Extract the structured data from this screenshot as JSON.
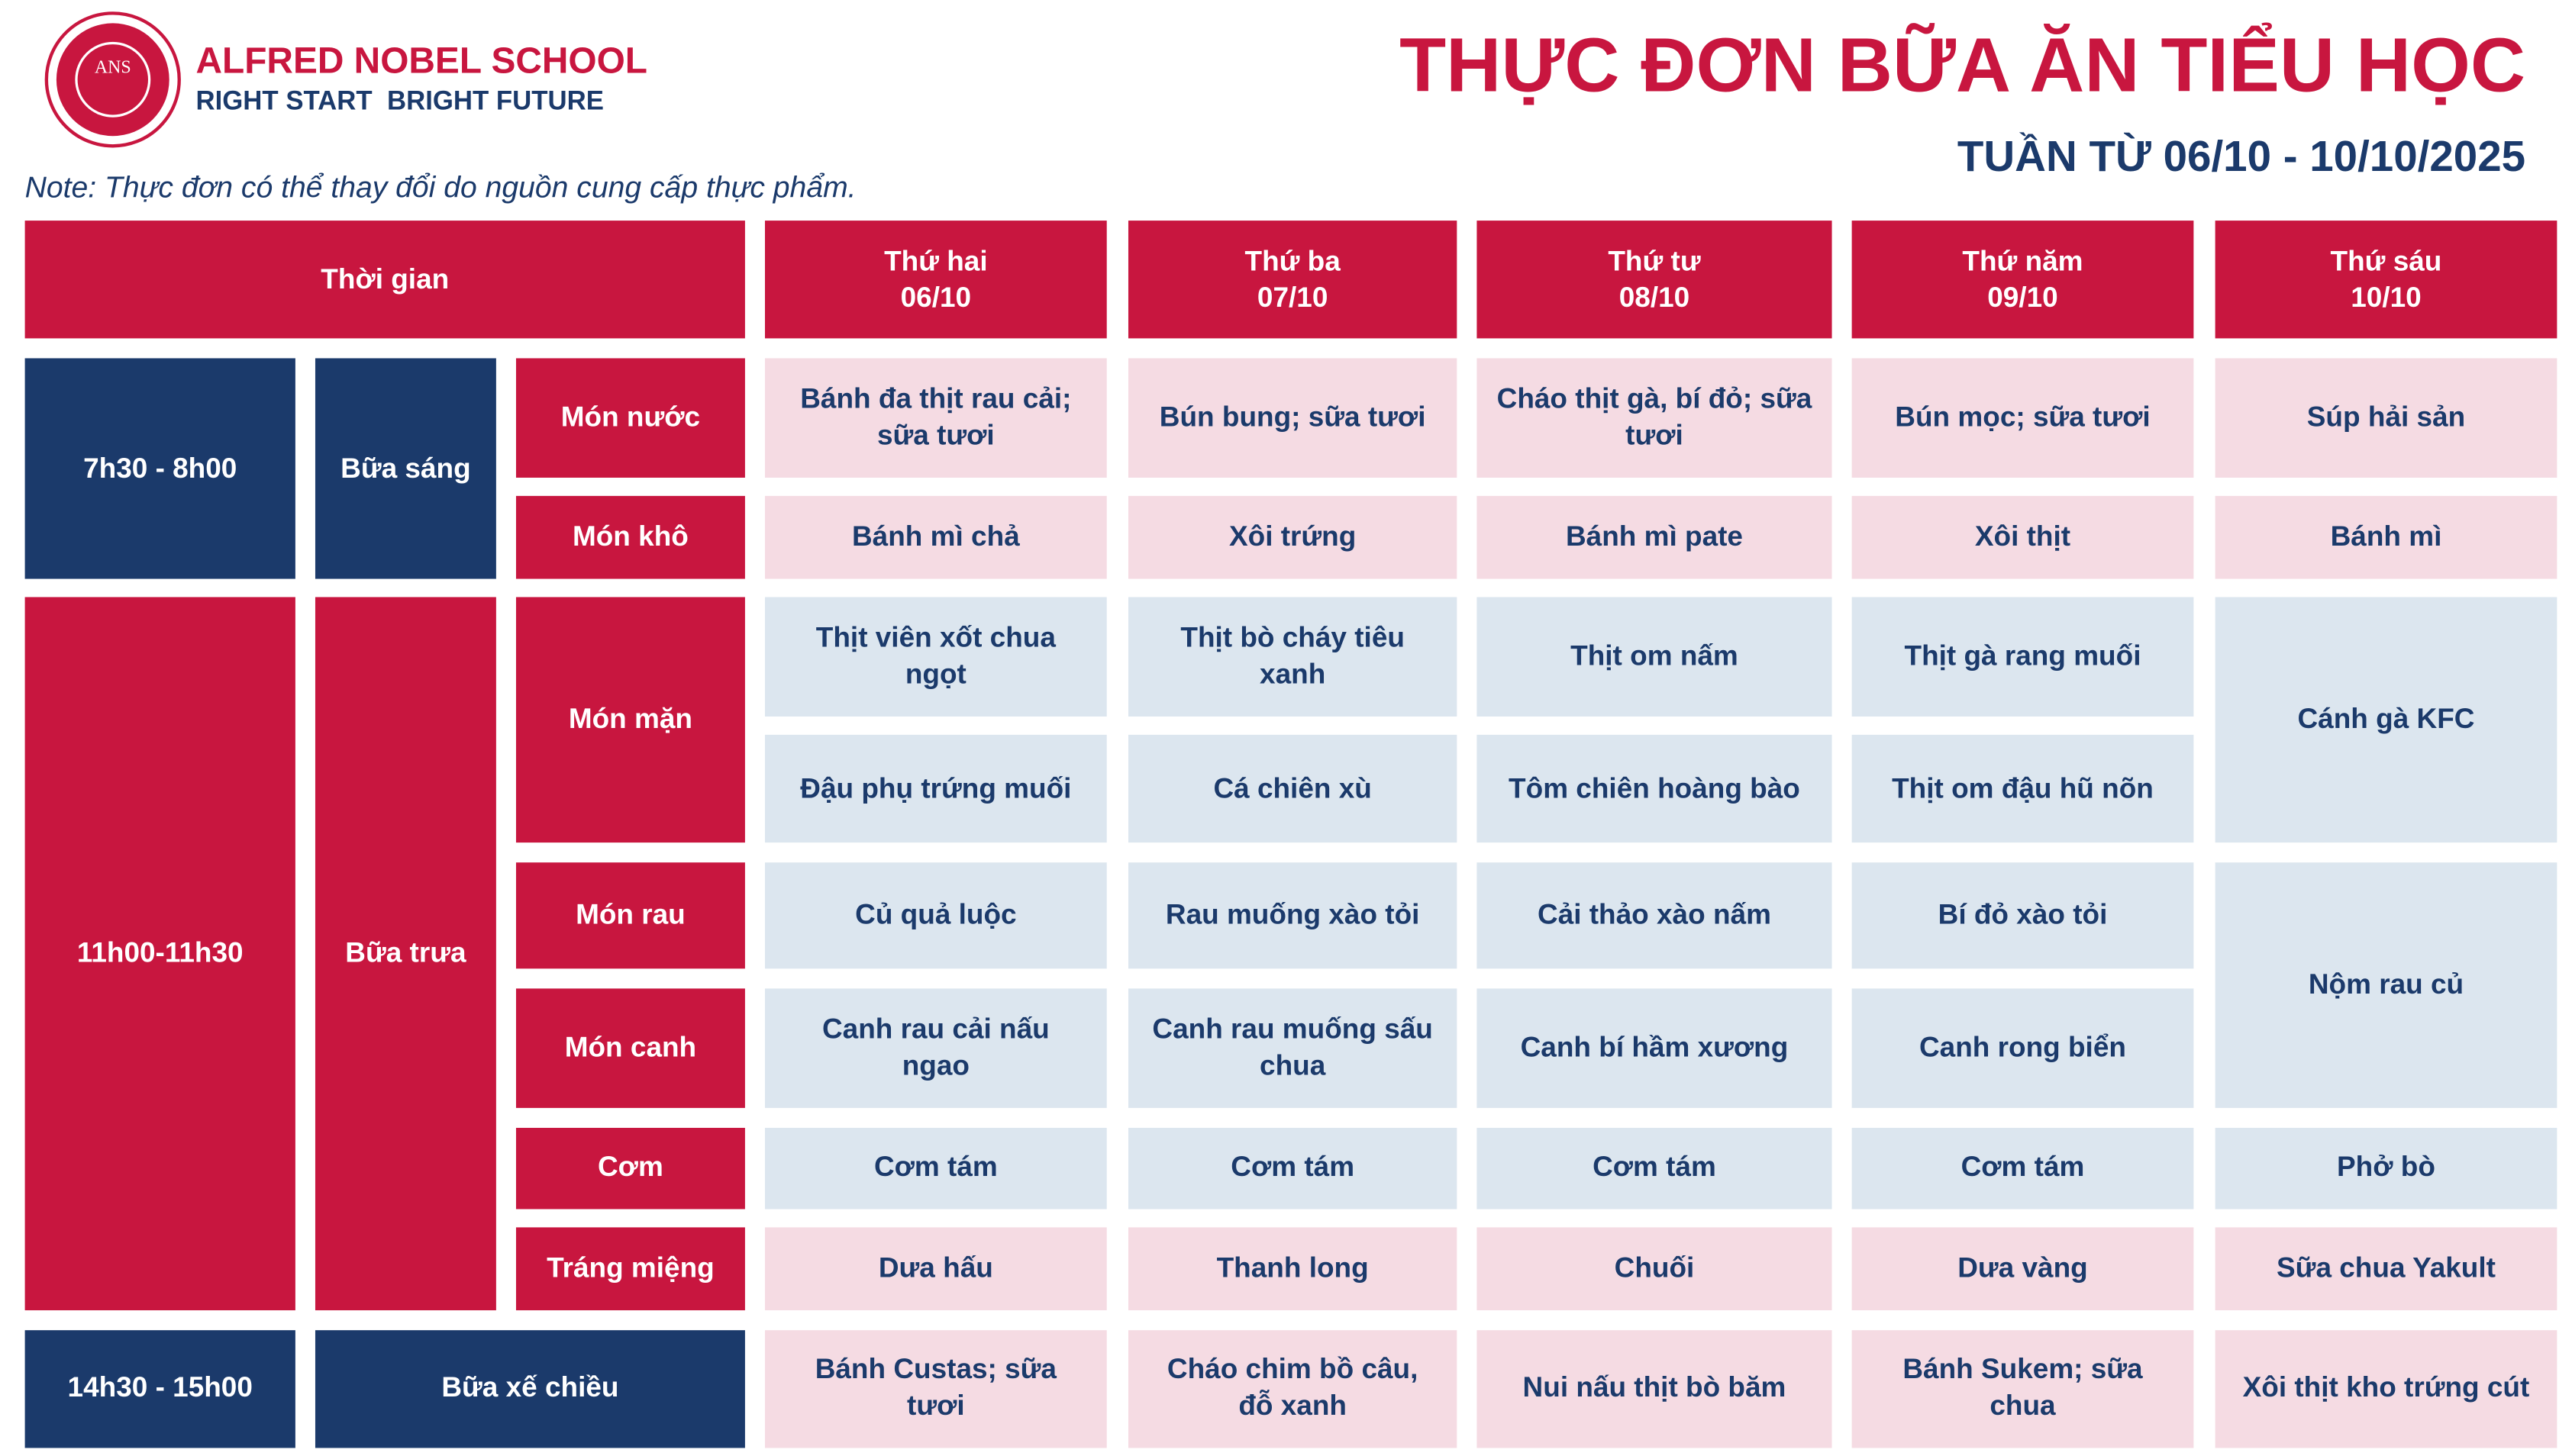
{
  "header": {
    "school_name": "ALFRED NOBEL SCHOOL",
    "slogan": "RIGHT START  BRIGHT FUTURE",
    "logo_text": "ANS",
    "title": "THỰC ĐƠN BỮA ĂN TIỂU HỌC",
    "week": "TUẦN TỪ 06/10 - 10/10/2025",
    "note": "Note: Thực đơn có thể thay đổi do nguồn cung cấp thực phẩm."
  },
  "table": {
    "header": {
      "time": "Thời gian",
      "days": [
        {
          "day": "Thứ hai",
          "date": "06/10"
        },
        {
          "day": "Thứ ba",
          "date": "07/10"
        },
        {
          "day": "Thứ tư",
          "date": "08/10"
        },
        {
          "day": "Thứ năm",
          "date": "09/10"
        },
        {
          "day": "Thứ sáu",
          "date": "10/10"
        }
      ]
    },
    "sections": [
      {
        "time": "7h30 - 8h00",
        "meal": "Bữa sáng",
        "time_color": "#1b3a6b",
        "rows": [
          {
            "dish": "Món nước",
            "cell_color": "#f5dbe3",
            "items": [
              "Bánh đa thịt rau cải; sữa tươi",
              "Bún bung; sữa tươi",
              "Cháo thịt gà, bí đỏ; sữa tươi",
              "Bún mọc; sữa tươi",
              "Súp hải sản"
            ]
          },
          {
            "dish": "Món khô",
            "cell_color": "#f5dbe3",
            "items": [
              "Bánh mì chả",
              "Xôi trứng",
              "Bánh mì pate",
              "Xôi thịt",
              "Bánh mì"
            ]
          }
        ]
      },
      {
        "time": "11h00-11h30",
        "meal": "Bữa trưa",
        "time_color": "#c8163f",
        "rows": [
          {
            "dish": "Món mặn",
            "cell_color": "#dce6ef",
            "items": [
              [
                "Thịt viên xốt chua ngọt",
                "Đậu phụ trứng muối"
              ],
              [
                "Thịt bò cháy tiêu xanh",
                "Cá chiên xù"
              ],
              [
                "Thịt om nấm",
                "Tôm chiên hoàng bào"
              ],
              [
                "Thịt gà rang muối",
                "Thịt om đậu hũ nõn"
              ],
              [
                "Cánh gà KFC"
              ]
            ]
          },
          {
            "dish": "Món rau",
            "cell_color": "#dce6ef",
            "items": [
              "Củ quả luộc",
              "Rau muống xào tỏi",
              "Cải thảo xào nấm",
              "Bí đỏ xào tỏi",
              "Nộm rau củ"
            ]
          },
          {
            "dish": "Món canh",
            "cell_color": "#dce6ef",
            "items": [
              "Canh rau cải nấu ngao",
              "Canh rau muống sấu chua",
              "Canh bí hầm xương",
              "Canh rong biển"
            ]
          },
          {
            "dish": "Cơm",
            "cell_color": "#dce6ef",
            "items": [
              "Cơm tám",
              "Cơm tám",
              "Cơm tám",
              "Cơm tám",
              "Phở bò"
            ]
          },
          {
            "dish": "Tráng miệng",
            "cell_color": "#f5dbe3",
            "items": [
              "Dưa hấu",
              "Thanh long",
              "Chuối",
              "Dưa vàng",
              "Sữa chua Yakult"
            ]
          }
        ]
      },
      {
        "time": "14h30 - 15h00",
        "meal": "Bữa xế chiều",
        "time_color": "#1b3a6b",
        "rows": [
          {
            "cell_color": "#f5dbe3",
            "items": [
              "Bánh Custas; sữa tươi",
              "Cháo chim bồ câu, đỗ xanh",
              "Nui nấu thịt bò băm",
              "Bánh Sukem; sữa chua",
              "Xôi thịt kho trứng cút"
            ]
          }
        ]
      }
    ]
  }
}
